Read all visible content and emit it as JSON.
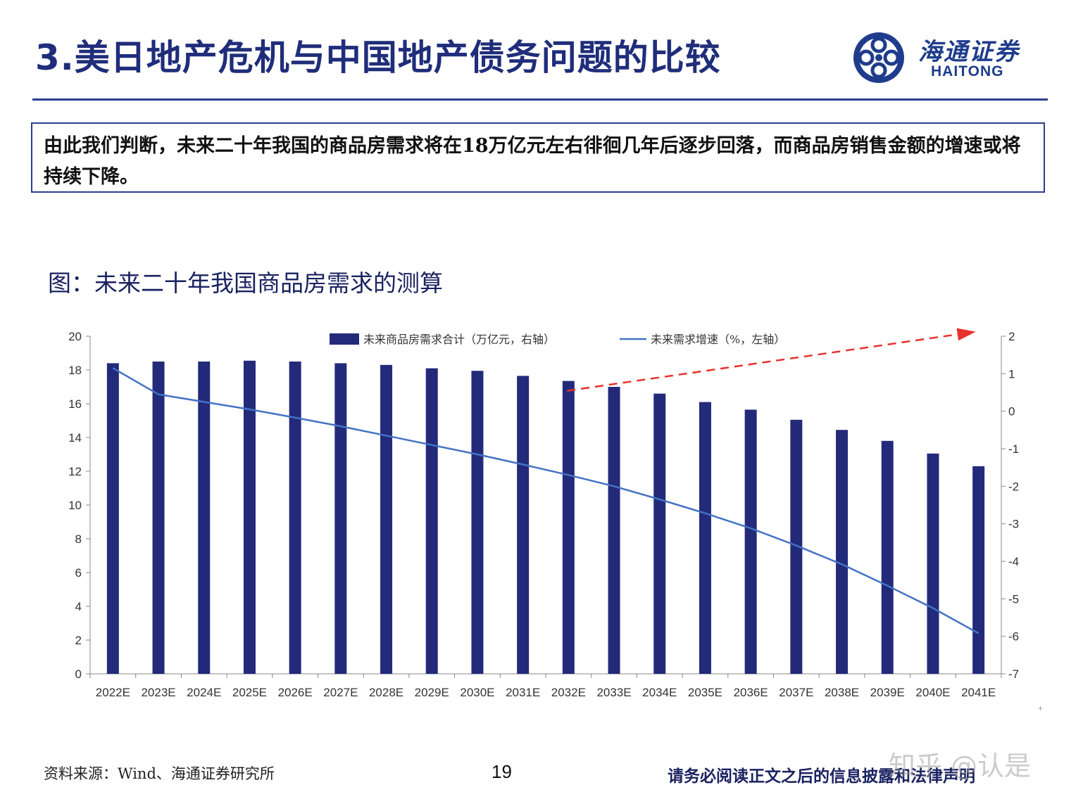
{
  "header": {
    "title": "3.美日地产危机与中国地产债务问题的比较",
    "logo_cn": "海通证券",
    "logo_en": "HAITONG"
  },
  "summary": {
    "text": "由此我们判断，未来二十年我国的商品房需求将在18万亿元左右徘徊几年后逐步回落，而商品房销售金额的增速或将持续下降。"
  },
  "figure": {
    "caption": "图：未来二十年我国商品房需求的测算"
  },
  "chart_data": {
    "type": "bar",
    "categories": [
      "2022E",
      "2023E",
      "2024E",
      "2025E",
      "2026E",
      "2027E",
      "2028E",
      "2029E",
      "2030E",
      "2031E",
      "2032E",
      "2033E",
      "2034E",
      "2035E",
      "2036E",
      "2037E",
      "2038E",
      "2039E",
      "2040E",
      "2041E"
    ],
    "series": [
      {
        "name": "未来商品房需求合计（万亿元，右轴）",
        "type": "bar",
        "color": "#232a7a",
        "values": [
          18.4,
          18.5,
          18.5,
          18.55,
          18.5,
          18.4,
          18.3,
          18.1,
          17.95,
          17.65,
          17.35,
          17.0,
          16.6,
          16.1,
          15.65,
          15.05,
          14.45,
          13.8,
          13.05,
          12.3
        ]
      },
      {
        "name": "未来需求增速（%，左轴）",
        "type": "line",
        "color": "#4472c4",
        "values": [
          1.15,
          0.45,
          0.25,
          0.05,
          -0.17,
          -0.4,
          -0.65,
          -0.9,
          -1.15,
          -1.42,
          -1.7,
          -2.0,
          -2.35,
          -2.72,
          -3.12,
          -3.58,
          -4.08,
          -4.65,
          -5.25,
          -5.92
        ]
      }
    ],
    "y_left": {
      "ticks": [
        "20",
        "18",
        "16",
        "14",
        "12",
        "10",
        "8",
        "6",
        "4",
        "2",
        "0"
      ],
      "range": [
        0,
        20
      ]
    },
    "y_right": {
      "ticks": [
        "2",
        "1",
        "0",
        "-1",
        "-2",
        "-3",
        "-4",
        "-5",
        "-6",
        "-7"
      ],
      "range": [
        -7,
        2
      ]
    },
    "annotation": {
      "type": "dashed-arrow",
      "color": "#e8312a",
      "from_category": "2032E",
      "to_category": "2041E"
    },
    "legend_position": "top"
  },
  "footer": {
    "source": "资料来源：Wind、海通证券研究所",
    "page": "19",
    "disclaimer": "请务必阅读正文之后的信息披露和法律声明",
    "watermark": "知乎 @认是",
    "small_mark": "+"
  }
}
